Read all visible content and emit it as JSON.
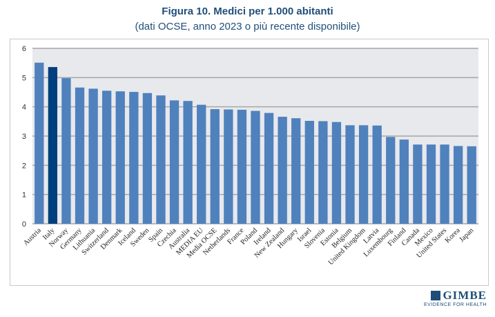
{
  "chart_data": {
    "type": "bar",
    "title": "Figura 10. Medici per 1.000 abitanti",
    "subtitle": "(dati OCSE, anno 2023 o più recente disponibile)",
    "xlabel": "",
    "ylabel": "",
    "ylim": [
      0,
      6
    ],
    "yticks": [
      0,
      1,
      2,
      3,
      4,
      5,
      6
    ],
    "grid": true,
    "categories": [
      "Austria",
      "Italy",
      "Norway",
      "Germany",
      "Lithuania",
      "Switzerland",
      "Denmark",
      "Iceland",
      "Sweden",
      "Spain",
      "Czechia",
      "Australia",
      "MEDIA EU",
      "Media OCSE",
      "Netherlands",
      "France",
      "Poland",
      "Ireland",
      "New Zealand",
      "Hungary",
      "Israel",
      "Slovenia",
      "Estonia",
      "Belgium",
      "United Kingdom",
      "Latvia",
      "Luxembourg",
      "Finland",
      "Canada",
      "Mexico",
      "United States",
      "Korea",
      "Japan"
    ],
    "values": [
      5.51,
      5.36,
      4.98,
      4.66,
      4.62,
      4.55,
      4.53,
      4.51,
      4.47,
      4.39,
      4.22,
      4.2,
      4.07,
      3.92,
      3.91,
      3.9,
      3.86,
      3.79,
      3.66,
      3.61,
      3.52,
      3.51,
      3.48,
      3.37,
      3.37,
      3.36,
      2.97,
      2.88,
      2.71,
      2.71,
      2.71,
      2.66,
      2.65
    ],
    "highlight": "Italy",
    "colors": {
      "bar": "#4f81bd",
      "highlight": "#003f7d",
      "plot_bg": "#e8e9ed",
      "grid": "#a6a6a6"
    }
  },
  "logo": {
    "name": "GIMBE",
    "tagline": "EVIDENCE FOR HEALTH"
  }
}
